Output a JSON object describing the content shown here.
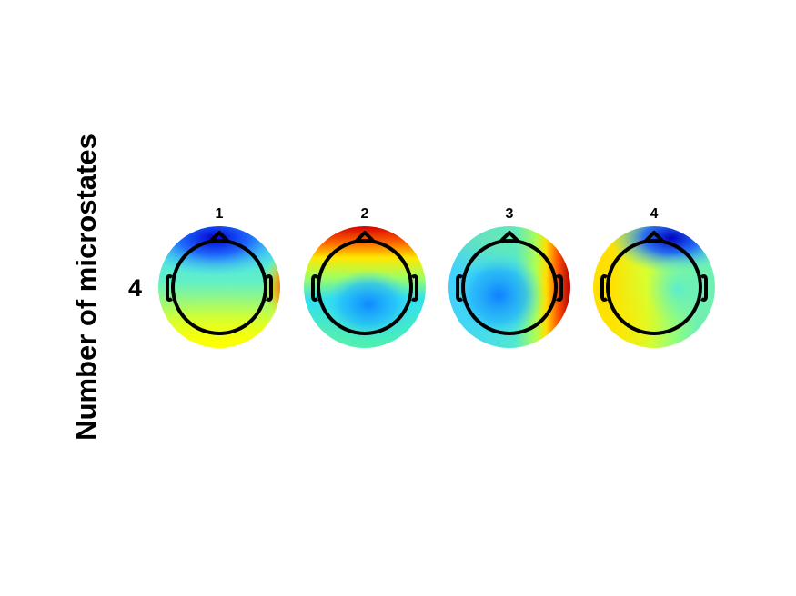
{
  "figure": {
    "ylabel": "Number of microstates",
    "row_label": "4",
    "colormap": "jet",
    "head_outline_color": "#000000",
    "maps": [
      {
        "title": "1",
        "color_centers": [
          {
            "label": "top-negative",
            "color": "#0000d8"
          },
          {
            "label": "frontal-blue",
            "color": "#1e6bff"
          },
          {
            "label": "right-edge-positive",
            "color": "#ff5a00"
          },
          {
            "label": "bottom-positive",
            "color": "#ffff00"
          }
        ]
      },
      {
        "title": "2",
        "color_centers": [
          {
            "label": "frontal-positive",
            "color": "#c40000"
          },
          {
            "label": "frontal-yellow",
            "color": "#ffc800"
          },
          {
            "label": "posterior-negative",
            "color": "#1496ff"
          }
        ]
      },
      {
        "title": "3",
        "color_centers": [
          {
            "label": "right-positive",
            "color": "#b80000"
          },
          {
            "label": "left-negative",
            "color": "#1a8cff"
          }
        ]
      },
      {
        "title": "4",
        "color_centers": [
          {
            "label": "top-right-negative",
            "color": "#0000c8"
          },
          {
            "label": "left-positive",
            "color": "#ffdc00"
          }
        ]
      }
    ]
  }
}
